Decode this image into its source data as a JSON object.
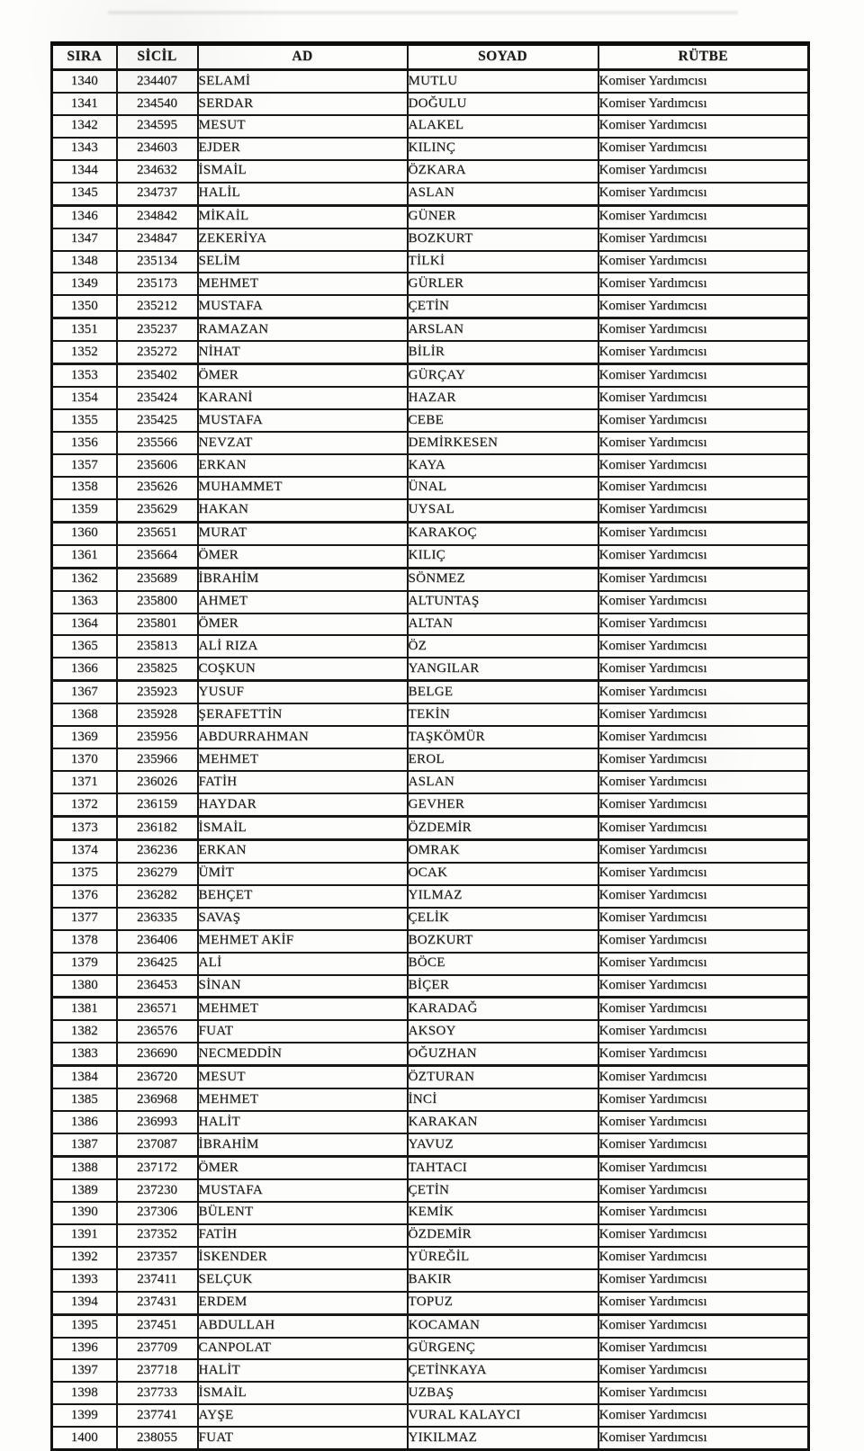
{
  "table": {
    "columns": [
      "SIRA",
      "SİCİL",
      "AD",
      "SOYAD",
      "RÜTBE"
    ],
    "rows": [
      [
        "1340",
        "234407",
        "SELAMİ",
        "MUTLU",
        "Komiser Yardımcısı"
      ],
      [
        "1341",
        "234540",
        "SERDAR",
        "DOĞULU",
        "Komiser Yardımcısı"
      ],
      [
        "1342",
        "234595",
        "MESUT",
        "ALAKEL",
        "Komiser Yardımcısı"
      ],
      [
        "1343",
        "234603",
        "EJDER",
        "KILINÇ",
        "Komiser Yardımcısı"
      ],
      [
        "1344",
        "234632",
        "İSMAİL",
        "ÖZKARA",
        "Komiser Yardımcısı"
      ],
      [
        "1345",
        "234737",
        "HALİL",
        "ASLAN",
        "Komiser Yardımcısı"
      ],
      [
        "1346",
        "234842",
        "MİKAİL",
        "GÜNER",
        "Komiser Yardımcısı"
      ],
      [
        "1347",
        "234847",
        "ZEKERİYA",
        "BOZKURT",
        "Komiser Yardımcısı"
      ],
      [
        "1348",
        "235134",
        "SELİM",
        "TİLKİ",
        "Komiser Yardımcısı"
      ],
      [
        "1349",
        "235173",
        "MEHMET",
        "GÜRLER",
        "Komiser Yardımcısı"
      ],
      [
        "1350",
        "235212",
        "MUSTAFA",
        "ÇETİN",
        "Komiser Yardımcısı"
      ],
      [
        "1351",
        "235237",
        "RAMAZAN",
        "ARSLAN",
        "Komiser Yardımcısı"
      ],
      [
        "1352",
        "235272",
        "NİHAT",
        "BİLİR",
        "Komiser Yardımcısı"
      ],
      [
        "1353",
        "235402",
        "ÖMER",
        "GÜRÇAY",
        "Komiser Yardımcısı"
      ],
      [
        "1354",
        "235424",
        "KARANİ",
        "HAZAR",
        "Komiser Yardımcısı"
      ],
      [
        "1355",
        "235425",
        "MUSTAFA",
        "CEBE",
        "Komiser Yardımcısı"
      ],
      [
        "1356",
        "235566",
        "NEVZAT",
        "DEMİRKESEN",
        "Komiser Yardımcısı"
      ],
      [
        "1357",
        "235606",
        "ERKAN",
        "KAYA",
        "Komiser Yardımcısı"
      ],
      [
        "1358",
        "235626",
        "MUHAMMET",
        "ÜNAL",
        "Komiser Yardımcısı"
      ],
      [
        "1359",
        "235629",
        "HAKAN",
        "UYSAL",
        "Komiser Yardımcısı"
      ],
      [
        "1360",
        "235651",
        "MURAT",
        "KARAKOÇ",
        "Komiser Yardımcısı"
      ],
      [
        "1361",
        "235664",
        "ÖMER",
        "KILIÇ",
        "Komiser Yardımcısı"
      ],
      [
        "1362",
        "235689",
        "İBRAHİM",
        "SÖNMEZ",
        "Komiser Yardımcısı"
      ],
      [
        "1363",
        "235800",
        "AHMET",
        "ALTUNTAŞ",
        "Komiser Yardımcısı"
      ],
      [
        "1364",
        "235801",
        "ÖMER",
        "ALTAN",
        "Komiser Yardımcısı"
      ],
      [
        "1365",
        "235813",
        "ALİ RIZA",
        "ÖZ",
        "Komiser Yardımcısı"
      ],
      [
        "1366",
        "235825",
        "COŞKUN",
        "YANGILAR",
        "Komiser Yardımcısı"
      ],
      [
        "1367",
        "235923",
        "YUSUF",
        "BELGE",
        "Komiser Yardımcısı"
      ],
      [
        "1368",
        "235928",
        "ŞERAFETTİN",
        "TEKİN",
        "Komiser Yardımcısı"
      ],
      [
        "1369",
        "235956",
        "ABDURRAHMAN",
        "TAŞKÖMÜR",
        "Komiser Yardımcısı"
      ],
      [
        "1370",
        "235966",
        "MEHMET",
        "EROL",
        "Komiser Yardımcısı"
      ],
      [
        "1371",
        "236026",
        "FATİH",
        "ASLAN",
        "Komiser Yardımcısı"
      ],
      [
        "1372",
        "236159",
        "HAYDAR",
        "GEVHER",
        "Komiser Yardımcısı"
      ],
      [
        "1373",
        "236182",
        "İSMAİL",
        "ÖZDEMİR",
        "Komiser Yardımcısı"
      ],
      [
        "1374",
        "236236",
        "ERKAN",
        "OMRAK",
        "Komiser Yardımcısı"
      ],
      [
        "1375",
        "236279",
        "ÜMİT",
        "OCAK",
        "Komiser Yardımcısı"
      ],
      [
        "1376",
        "236282",
        "BEHÇET",
        "YILMAZ",
        "Komiser Yardımcısı"
      ],
      [
        "1377",
        "236335",
        "SAVAŞ",
        "ÇELİK",
        "Komiser Yardımcısı"
      ],
      [
        "1378",
        "236406",
        "MEHMET AKİF",
        "BOZKURT",
        "Komiser Yardımcısı"
      ],
      [
        "1379",
        "236425",
        "ALİ",
        "BÖCE",
        "Komiser Yardımcısı"
      ],
      [
        "1380",
        "236453",
        "SİNAN",
        "BİÇER",
        "Komiser Yardımcısı"
      ],
      [
        "1381",
        "236571",
        "MEHMET",
        "KARADAĞ",
        "Komiser Yardımcısı"
      ],
      [
        "1382",
        "236576",
        "FUAT",
        "AKSOY",
        "Komiser Yardımcısı"
      ],
      [
        "1383",
        "236690",
        "NECMEDDİN",
        "OĞUZHAN",
        "Komiser Yardımcısı"
      ],
      [
        "1384",
        "236720",
        "MESUT",
        "ÖZTURAN",
        "Komiser Yardımcısı"
      ],
      [
        "1385",
        "236968",
        "MEHMET",
        "İNCİ",
        "Komiser Yardımcısı"
      ],
      [
        "1386",
        "236993",
        "HALİT",
        "KARAKAN",
        "Komiser Yardımcısı"
      ],
      [
        "1387",
        "237087",
        "İBRAHİM",
        "YAVUZ",
        "Komiser Yardımcısı"
      ],
      [
        "1388",
        "237172",
        "ÖMER",
        "TAHTACI",
        "Komiser Yardımcısı"
      ],
      [
        "1389",
        "237230",
        "MUSTAFA",
        "ÇETİN",
        "Komiser Yardımcısı"
      ],
      [
        "1390",
        "237306",
        "BÜLENT",
        "KEMİK",
        "Komiser Yardımcısı"
      ],
      [
        "1391",
        "237352",
        "FATİH",
        "ÖZDEMİR",
        "Komiser Yardımcısı"
      ],
      [
        "1392",
        "237357",
        "İSKENDER",
        "YÜREĞİL",
        "Komiser Yardımcısı"
      ],
      [
        "1393",
        "237411",
        "SELÇUK",
        "BAKIR",
        "Komiser Yardımcısı"
      ],
      [
        "1394",
        "237431",
        "ERDEM",
        "TOPUZ",
        "Komiser Yardımcısı"
      ],
      [
        "1395",
        "237451",
        "ABDULLAH",
        "KOCAMAN",
        "Komiser Yardımcısı"
      ],
      [
        "1396",
        "237709",
        "CANPOLAT",
        "GÜRGENÇ",
        "Komiser Yardımcısı"
      ],
      [
        "1397",
        "237718",
        "HALİT",
        "ÇETİNKAYA",
        "Komiser Yardımcısı"
      ],
      [
        "1398",
        "237733",
        "İSMAİL",
        "UZBAŞ",
        "Komiser Yardımcısı"
      ],
      [
        "1399",
        "237741",
        "AYŞE",
        "VURAL KALAYCI",
        "Komiser Yardımcısı"
      ],
      [
        "1400",
        "238055",
        "FUAT",
        "YIKILMAZ",
        "Komiser Yardımcısı"
      ]
    ]
  }
}
